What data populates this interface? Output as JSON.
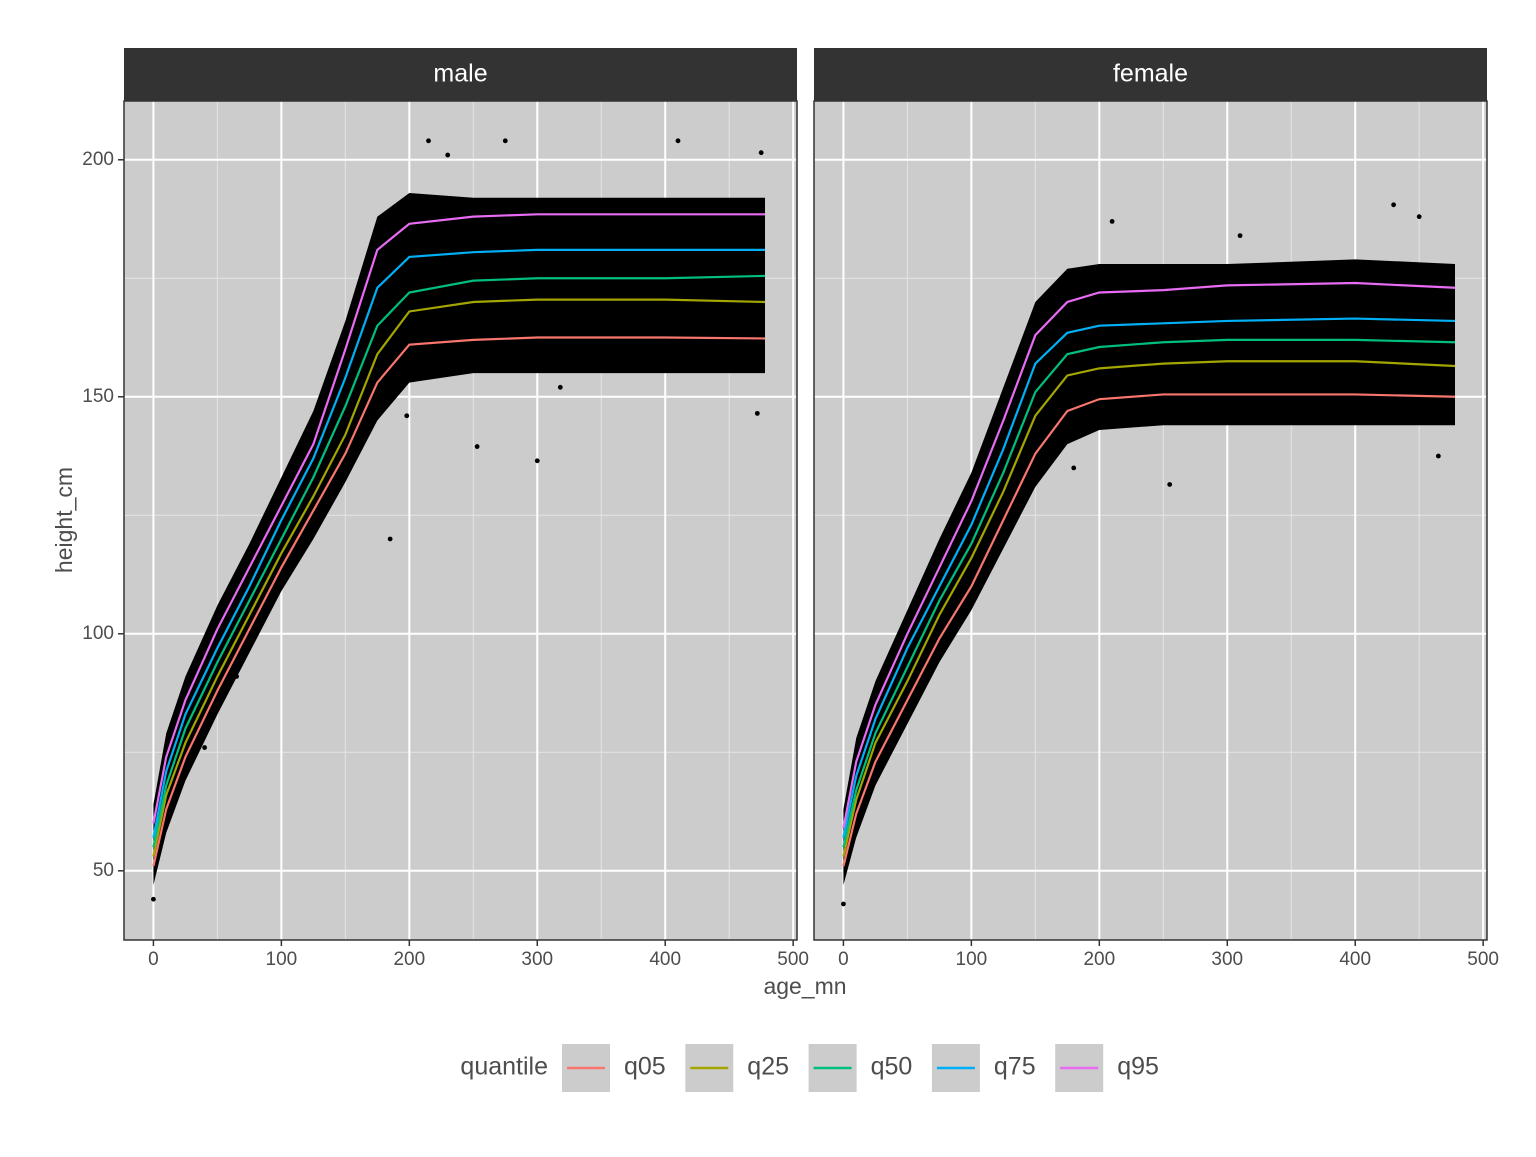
{
  "chart_data": {
    "type": "line",
    "x_label": "age_mn",
    "y_label": "height_cm",
    "legend_title": "quantile",
    "legend_position": "bottom",
    "xlim": [
      -23,
      503
    ],
    "ylim": [
      35.4,
      212.4
    ],
    "xticks": [
      0,
      100,
      200,
      300,
      400,
      500
    ],
    "yticks": [
      50,
      100,
      150,
      200
    ],
    "xminor": [
      50,
      150,
      250,
      350,
      450
    ],
    "yminor": [
      75,
      125,
      175
    ],
    "grid": true,
    "x": [
      0,
      10,
      25,
      50,
      75,
      100,
      125,
      150,
      175,
      200,
      250,
      300,
      400,
      478
    ],
    "facets": [
      {
        "title": "male",
        "cloud": {
          "color": "#000000",
          "lower": [
            47,
            58,
            69,
            83,
            96,
            109,
            120,
            132,
            145,
            153,
            155,
            155,
            155,
            155
          ],
          "upper": [
            64,
            79,
            91,
            106,
            119,
            133,
            147,
            166,
            188,
            193,
            192,
            192,
            192,
            192
          ]
        },
        "points": {
          "color": "#000000",
          "x": [
            185,
            253,
            300,
            198,
            275,
            215,
            230,
            410,
            475,
            472,
            318,
            65,
            0,
            40
          ],
          "y": [
            120,
            139.5,
            136.5,
            146,
            204,
            204,
            201,
            204,
            201.5,
            146.5,
            152,
            91,
            44,
            76
          ]
        },
        "series": [
          {
            "name": "q05",
            "color": "#F8766D",
            "values": [
              51,
              63,
              74,
              88,
              101,
              114,
              126,
              138,
              153,
              161,
              162,
              162.5,
              162.5,
              162.3
            ]
          },
          {
            "name": "q25",
            "color": "#A3A500",
            "values": [
              53,
              66,
              77,
              91,
              104,
              117,
              129,
              142,
              159,
              168,
              170,
              170.5,
              170.5,
              170
            ]
          },
          {
            "name": "q50",
            "color": "#00BF7D",
            "values": [
              55,
              68,
              80,
              94,
              107,
              120,
              133,
              148,
              165,
              172,
              174.5,
              175,
              175,
              175.5
            ]
          },
          {
            "name": "q75",
            "color": "#00B0F6",
            "values": [
              57,
              71,
              83,
              97,
              110,
              124,
              137,
              154,
              173,
              179.5,
              180.5,
              181,
              181,
              181
            ]
          },
          {
            "name": "q95",
            "color": "#E76BF3",
            "values": [
              60,
              74,
              86,
              101,
              114,
              127,
              140,
              160,
              181,
              186.5,
              188,
              188.5,
              188.5,
              188.5
            ]
          }
        ]
      },
      {
        "title": "female",
        "cloud": {
          "color": "#000000",
          "lower": [
            47,
            57,
            68,
            81,
            94,
            105,
            118,
            131,
            140,
            143,
            144,
            144,
            144,
            144
          ],
          "upper": [
            63,
            78,
            90,
            105,
            120,
            134,
            152,
            170,
            177,
            178,
            178,
            178,
            179,
            178
          ]
        },
        "points": {
          "color": "#000000",
          "x": [
            210,
            255,
            465,
            430,
            450,
            95,
            0,
            180,
            40,
            310
          ],
          "y": [
            187,
            131.5,
            137.5,
            190.5,
            188,
            126,
            43,
            135,
            86,
            184
          ]
        },
        "series": [
          {
            "name": "q05",
            "color": "#F8766D",
            "values": [
              51,
              62,
              73,
              86,
              99,
              110,
              124,
              138,
              147,
              149.5,
              150.5,
              150.5,
              150.5,
              150
            ]
          },
          {
            "name": "q25",
            "color": "#A3A500",
            "values": [
              53,
              65,
              77,
              90,
              104,
              116,
              130,
              146,
              154.5,
              156,
              157,
              157.5,
              157.5,
              156.5
            ]
          },
          {
            "name": "q50",
            "color": "#00BF7D",
            "values": [
              55,
              67,
              79,
              93,
              107,
              119,
              134,
              151,
              159,
              160.5,
              161.5,
              162,
              162,
              161.5
            ]
          },
          {
            "name": "q75",
            "color": "#00B0F6",
            "values": [
              57,
              70,
              82,
              97,
              110,
              123,
              139,
              157,
              163.5,
              165,
              165.5,
              166,
              166.5,
              166
            ]
          },
          {
            "name": "q95",
            "color": "#E76BF3",
            "values": [
              59,
              73,
              85,
              100,
              114,
              128,
              145,
              163,
              170,
              172,
              172.5,
              173.5,
              174,
              173
            ]
          }
        ]
      }
    ]
  }
}
